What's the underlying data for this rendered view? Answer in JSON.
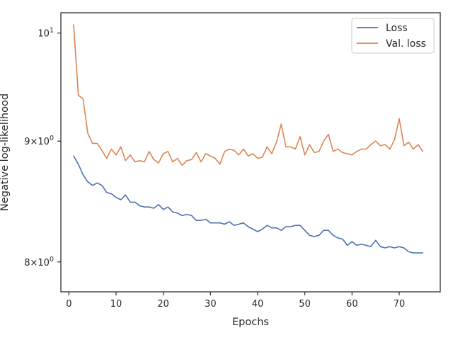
{
  "chart_data": {
    "type": "line",
    "title": "",
    "xlabel": "Epochs",
    "ylabel": "Negative log-likelihood",
    "yscale": "log",
    "xlim": [
      -1.7,
      78.7
    ],
    "ylim": [
      7.77,
      10.2
    ],
    "x_ticks": [
      0,
      10,
      20,
      30,
      40,
      50,
      60,
      70
    ],
    "y_ticks": [
      {
        "value": 10,
        "base": "10",
        "exp": "1"
      },
      {
        "value": 9,
        "base": "9×10",
        "exp": "0"
      },
      {
        "value": 8,
        "base": "8×10",
        "exp": "0"
      }
    ],
    "grid": false,
    "legend": "top-right",
    "x": [
      1,
      2,
      3,
      4,
      5,
      6,
      7,
      8,
      9,
      10,
      11,
      12,
      13,
      14,
      15,
      16,
      17,
      18,
      19,
      20,
      21,
      22,
      23,
      24,
      25,
      26,
      27,
      28,
      29,
      30,
      31,
      32,
      33,
      34,
      35,
      36,
      37,
      38,
      39,
      40,
      41,
      42,
      43,
      44,
      45,
      46,
      47,
      48,
      49,
      50,
      51,
      52,
      53,
      54,
      55,
      56,
      57,
      58,
      59,
      60,
      61,
      62,
      63,
      64,
      65,
      66,
      67,
      68,
      69,
      70,
      71,
      72,
      73,
      74,
      75
    ],
    "series": [
      {
        "name": "Loss",
        "color": "#4c72b0",
        "values": [
          8.87,
          8.8,
          8.71,
          8.65,
          8.62,
          8.64,
          8.62,
          8.56,
          8.55,
          8.52,
          8.5,
          8.54,
          8.48,
          8.48,
          8.45,
          8.44,
          8.44,
          8.43,
          8.46,
          8.42,
          8.44,
          8.4,
          8.39,
          8.37,
          8.38,
          8.37,
          8.33,
          8.33,
          8.34,
          8.31,
          8.31,
          8.31,
          8.3,
          8.32,
          8.29,
          8.3,
          8.31,
          8.28,
          8.26,
          8.24,
          8.26,
          8.29,
          8.27,
          8.27,
          8.25,
          8.28,
          8.28,
          8.29,
          8.29,
          8.25,
          8.21,
          8.2,
          8.21,
          8.25,
          8.25,
          8.21,
          8.19,
          8.18,
          8.13,
          8.16,
          8.13,
          8.14,
          8.13,
          8.12,
          8.17,
          8.12,
          8.11,
          8.12,
          8.11,
          8.12,
          8.11,
          8.08,
          8.07,
          8.07,
          8.07
        ]
      },
      {
        "name": "Val. loss",
        "color": "#dd8452",
        "values": [
          10.08,
          9.41,
          9.38,
          9.07,
          8.98,
          8.98,
          8.92,
          8.85,
          8.93,
          8.88,
          8.95,
          8.83,
          8.88,
          8.82,
          8.83,
          8.82,
          8.91,
          8.84,
          8.81,
          8.89,
          8.91,
          8.82,
          8.85,
          8.79,
          8.83,
          8.84,
          8.9,
          8.82,
          8.89,
          8.87,
          8.85,
          8.8,
          8.91,
          8.93,
          8.92,
          8.88,
          8.93,
          8.87,
          8.89,
          8.85,
          8.86,
          8.95,
          8.89,
          8.99,
          9.15,
          8.95,
          8.95,
          8.93,
          9.04,
          8.88,
          8.97,
          8.9,
          8.91,
          9.0,
          9.06,
          8.91,
          8.93,
          8.9,
          8.89,
          8.88,
          8.91,
          8.93,
          8.93,
          8.97,
          9.0,
          8.96,
          8.97,
          8.93,
          9.01,
          9.2,
          8.96,
          8.99,
          8.93,
          8.97,
          8.91
        ]
      }
    ]
  }
}
